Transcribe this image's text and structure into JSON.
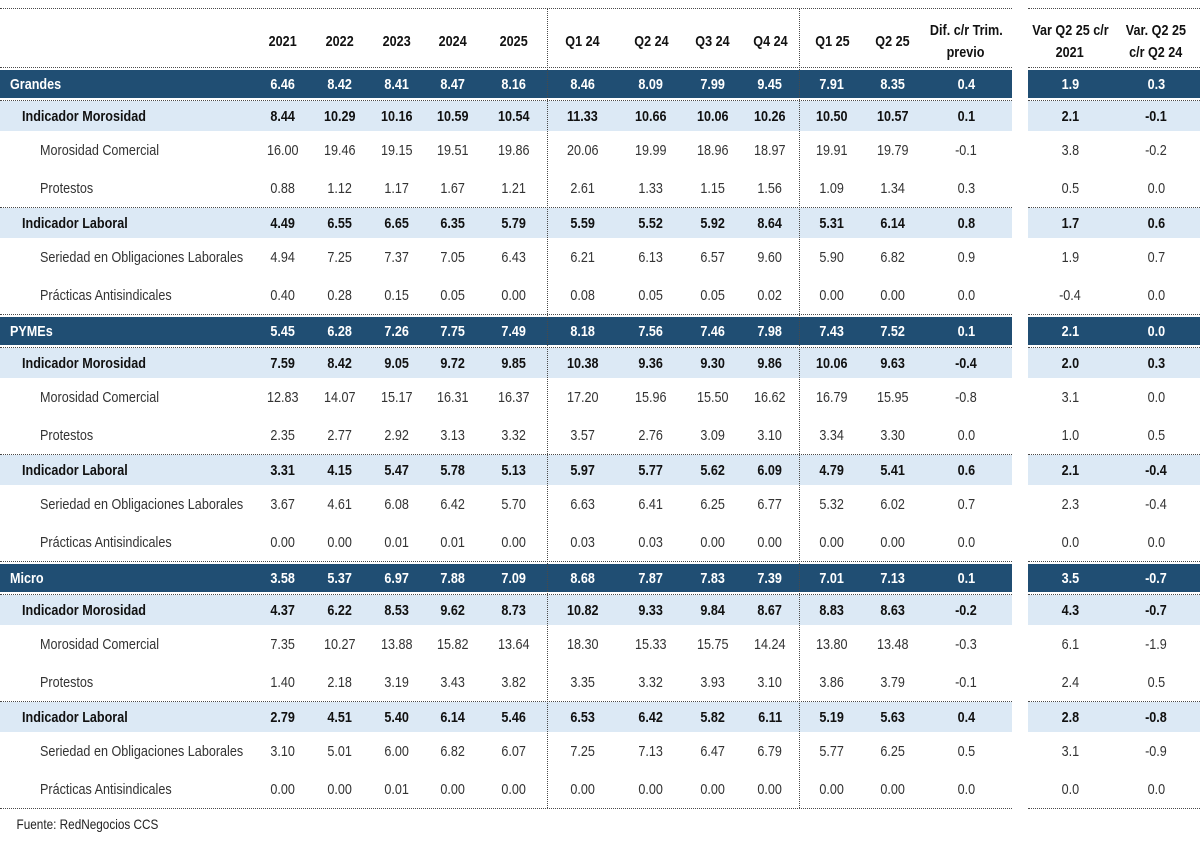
{
  "table": {
    "columns": {
      "years": [
        "2021",
        "2022",
        "2023",
        "2024",
        "2025"
      ],
      "quarters_2024": [
        "Q1 24",
        "Q2 24",
        "Q3 24",
        "Q4 24"
      ],
      "quarters_2025": [
        "Q1 25",
        "Q2 25"
      ],
      "dif_header": {
        "line1": "Dif. c/r Trim.",
        "line2": "previo"
      },
      "var_vs_2021_header": {
        "line1": "Var Q2 25 c/r",
        "line2": "2021"
      },
      "var_vs_q224_header": {
        "line1": "Var. Q2 25",
        "line2": "c/r Q2 24"
      }
    },
    "value_order": [
      "2021",
      "2022",
      "2023",
      "2024",
      "2025",
      "Q1 24",
      "Q2 24",
      "Q3 24",
      "Q4 24",
      "Q1 25",
      "Q2 25",
      "dif_cr_trim_previo",
      "var_q225_cr_2021",
      "var_q225_cr_q224"
    ],
    "sections": [
      {
        "label": "Grandes",
        "values": [
          "6.46",
          "8.42",
          "8.41",
          "8.47",
          "8.16",
          "8.46",
          "8.09",
          "7.99",
          "9.45",
          "7.91",
          "8.35",
          "0.4",
          "1.9",
          "0.3"
        ],
        "rows": [
          {
            "label": "Indicador Morosidad",
            "type": "subheader",
            "values": [
              "8.44",
              "10.29",
              "10.16",
              "10.59",
              "10.54",
              "11.33",
              "10.66",
              "10.06",
              "10.26",
              "10.50",
              "10.57",
              "0.1",
              "2.1",
              "-0.1"
            ]
          },
          {
            "label": "Morosidad Comercial",
            "type": "detail",
            "values": [
              "16.00",
              "19.46",
              "19.15",
              "19.51",
              "19.86",
              "20.06",
              "19.99",
              "18.96",
              "18.97",
              "19.91",
              "19.79",
              "-0.1",
              "3.8",
              "-0.2"
            ]
          },
          {
            "label": "Protestos",
            "type": "detail",
            "values": [
              "0.88",
              "1.12",
              "1.17",
              "1.67",
              "1.21",
              "2.61",
              "1.33",
              "1.15",
              "1.56",
              "1.09",
              "1.34",
              "0.3",
              "0.5",
              "0.0"
            ]
          },
          {
            "label": "Indicador Laboral",
            "type": "subheader",
            "values": [
              "4.49",
              "6.55",
              "6.65",
              "6.35",
              "5.79",
              "5.59",
              "5.52",
              "5.92",
              "8.64",
              "5.31",
              "6.14",
              "0.8",
              "1.7",
              "0.6"
            ]
          },
          {
            "label": "Seriedad en Obligaciones Laborales",
            "type": "detail",
            "values": [
              "4.94",
              "7.25",
              "7.37",
              "7.05",
              "6.43",
              "6.21",
              "6.13",
              "6.57",
              "9.60",
              "5.90",
              "6.82",
              "0.9",
              "1.9",
              "0.7"
            ]
          },
          {
            "label": "Prácticas Antisindicales",
            "type": "detail",
            "values": [
              "0.40",
              "0.28",
              "0.15",
              "0.05",
              "0.00",
              "0.08",
              "0.05",
              "0.05",
              "0.02",
              "0.00",
              "0.00",
              "0.0",
              "-0.4",
              "0.0"
            ]
          }
        ]
      },
      {
        "label": "PYMEs",
        "values": [
          "5.45",
          "6.28",
          "7.26",
          "7.75",
          "7.49",
          "8.18",
          "7.56",
          "7.46",
          "7.98",
          "7.43",
          "7.52",
          "0.1",
          "2.1",
          "0.0"
        ],
        "rows": [
          {
            "label": "Indicador Morosidad",
            "type": "subheader",
            "values": [
              "7.59",
              "8.42",
              "9.05",
              "9.72",
              "9.85",
              "10.38",
              "9.36",
              "9.30",
              "9.86",
              "10.06",
              "9.63",
              "-0.4",
              "2.0",
              "0.3"
            ]
          },
          {
            "label": "Morosidad Comercial",
            "type": "detail",
            "values": [
              "12.83",
              "14.07",
              "15.17",
              "16.31",
              "16.37",
              "17.20",
              "15.96",
              "15.50",
              "16.62",
              "16.79",
              "15.95",
              "-0.8",
              "3.1",
              "0.0"
            ]
          },
          {
            "label": "Protestos",
            "type": "detail",
            "values": [
              "2.35",
              "2.77",
              "2.92",
              "3.13",
              "3.32",
              "3.57",
              "2.76",
              "3.09",
              "3.10",
              "3.34",
              "3.30",
              "0.0",
              "1.0",
              "0.5"
            ]
          },
          {
            "label": "Indicador Laboral",
            "type": "subheader",
            "values": [
              "3.31",
              "4.15",
              "5.47",
              "5.78",
              "5.13",
              "5.97",
              "5.77",
              "5.62",
              "6.09",
              "4.79",
              "5.41",
              "0.6",
              "2.1",
              "-0.4"
            ]
          },
          {
            "label": "Seriedad en Obligaciones Laborales",
            "type": "detail",
            "values": [
              "3.67",
              "4.61",
              "6.08",
              "6.42",
              "5.70",
              "6.63",
              "6.41",
              "6.25",
              "6.77",
              "5.32",
              "6.02",
              "0.7",
              "2.3",
              "-0.4"
            ]
          },
          {
            "label": "Prácticas Antisindicales",
            "type": "detail",
            "values": [
              "0.00",
              "0.00",
              "0.01",
              "0.01",
              "0.00",
              "0.03",
              "0.03",
              "0.00",
              "0.00",
              "0.00",
              "0.00",
              "0.0",
              "0.0",
              "0.0"
            ]
          }
        ]
      },
      {
        "label": "Micro",
        "values": [
          "3.58",
          "5.37",
          "6.97",
          "7.88",
          "7.09",
          "8.68",
          "7.87",
          "7.83",
          "7.39",
          "7.01",
          "7.13",
          "0.1",
          "3.5",
          "-0.7"
        ],
        "rows": [
          {
            "label": "Indicador Morosidad",
            "type": "subheader",
            "values": [
              "4.37",
              "6.22",
              "8.53",
              "9.62",
              "8.73",
              "10.82",
              "9.33",
              "9.84",
              "8.67",
              "8.83",
              "8.63",
              "-0.2",
              "4.3",
              "-0.7"
            ]
          },
          {
            "label": "Morosidad Comercial",
            "type": "detail",
            "values": [
              "7.35",
              "10.27",
              "13.88",
              "15.82",
              "13.64",
              "18.30",
              "15.33",
              "15.75",
              "14.24",
              "13.80",
              "13.48",
              "-0.3",
              "6.1",
              "-1.9"
            ]
          },
          {
            "label": "Protestos",
            "type": "detail",
            "values": [
              "1.40",
              "2.18",
              "3.19",
              "3.43",
              "3.82",
              "3.35",
              "3.32",
              "3.93",
              "3.10",
              "3.86",
              "3.79",
              "-0.1",
              "2.4",
              "0.5"
            ]
          },
          {
            "label": "Indicador Laboral",
            "type": "subheader",
            "values": [
              "2.79",
              "4.51",
              "5.40",
              "6.14",
              "5.46",
              "6.53",
              "6.42",
              "5.82",
              "6.11",
              "5.19",
              "5.63",
              "0.4",
              "2.8",
              "-0.8"
            ]
          },
          {
            "label": "Seriedad en Obligaciones Laborales",
            "type": "detail",
            "values": [
              "3.10",
              "5.01",
              "6.00",
              "6.82",
              "6.07",
              "7.25",
              "7.13",
              "6.47",
              "6.79",
              "5.77",
              "6.25",
              "0.5",
              "3.1",
              "-0.9"
            ]
          },
          {
            "label": "Prácticas Antisindicales",
            "type": "detail",
            "values": [
              "0.00",
              "0.00",
              "0.01",
              "0.00",
              "0.00",
              "0.00",
              "0.00",
              "0.00",
              "0.00",
              "0.00",
              "0.00",
              "0.0",
              "0.0",
              "0.0"
            ]
          }
        ]
      }
    ],
    "footer": "Fuente: RedNegocios CCS"
  },
  "colors": {
    "section_row_bg": "#204E73",
    "indicator_row_bg": "#DCE9F5",
    "section_text": "#ffffff",
    "body_text": "#333333",
    "dotted_line": "#4a4a4a"
  }
}
